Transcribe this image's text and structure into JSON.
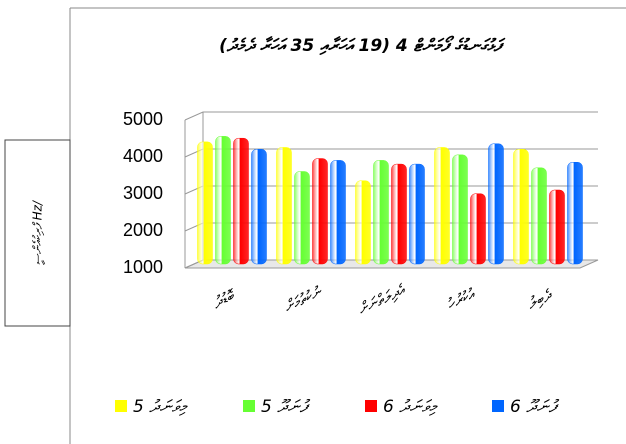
{
  "chart_data": {
    "type": "bar",
    "title": "ފަޅުގަނޑުގެ ފޯމަންޓް 4 (19 އަހަރާއި 35 އަހަރާ ދެމެދު)",
    "y_label": "ފްރިކުއެންސީ Hz/",
    "categories": [
      "ބޮޑުދު",
      "ނުކުތުމަށް",
      "އެދިލަތްނަށް",
      "އުކުރުހު",
      "ދެބިލު"
    ],
    "series": [
      {
        "name": "މިވަނަދު 5",
        "color": "#ffff00",
        "values": [
          4300,
          4150,
          3250,
          4150,
          4100
        ]
      },
      {
        "name": "ފުނަދޫ 5",
        "color": "#66ff33",
        "values": [
          4450,
          3500,
          3800,
          3950,
          3600
        ]
      },
      {
        "name": "މިވަނަދު 6",
        "color": "#ff0000",
        "values": [
          4400,
          3850,
          3700,
          2900,
          3000
        ]
      },
      {
        "name": "ފުނަދޫ 6",
        "color": "#0066ff",
        "values": [
          4100,
          3800,
          3700,
          4250,
          3750
        ]
      }
    ],
    "ylim": [
      1000,
      5000
    ],
    "yticks": [
      1000,
      2000,
      3000,
      4000,
      5000
    ],
    "grid": true,
    "legend": "bottom"
  }
}
